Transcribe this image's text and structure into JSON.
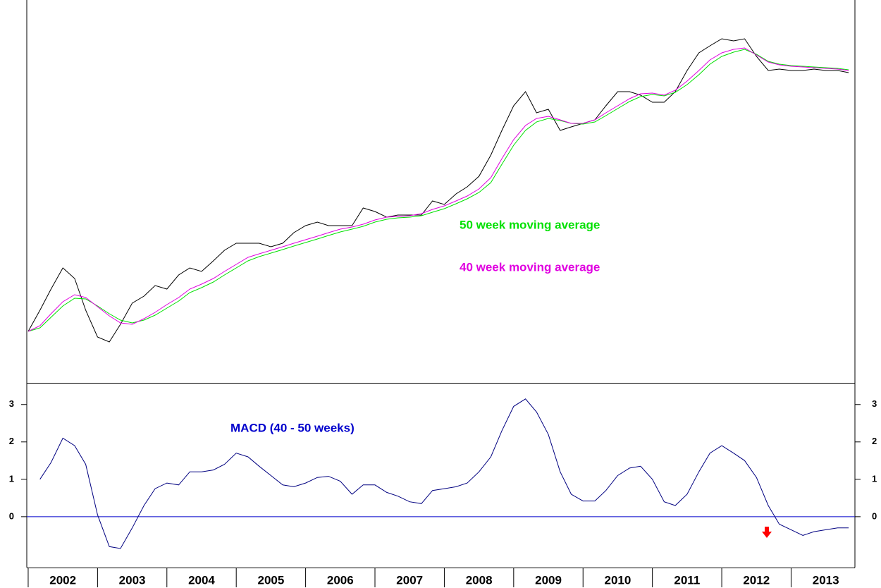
{
  "chart_data": [
    {
      "type": "line",
      "xlim": [
        2001.98,
        2013.92
      ],
      "ylim": [
        0,
        543
      ],
      "x": [
        2002,
        2002.17,
        2002.33,
        2002.5,
        2002.67,
        2002.83,
        2003,
        2003.17,
        2003.33,
        2003.5,
        2003.67,
        2003.83,
        2004,
        2004.17,
        2004.33,
        2004.5,
        2004.67,
        2004.83,
        2005,
        2005.17,
        2005.33,
        2005.5,
        2005.67,
        2005.83,
        2006,
        2006.17,
        2006.33,
        2006.5,
        2006.67,
        2006.83,
        2007,
        2007.17,
        2007.33,
        2007.5,
        2007.67,
        2007.83,
        2008,
        2008.17,
        2008.33,
        2008.5,
        2008.67,
        2008.83,
        2009,
        2009.17,
        2009.33,
        2009.5,
        2009.67,
        2009.83,
        2010,
        2010.17,
        2010.33,
        2010.5,
        2010.67,
        2010.83,
        2011,
        2011.17,
        2011.33,
        2011.5,
        2011.67,
        2011.83,
        2012,
        2012.17,
        2012.33,
        2012.5,
        2012.67,
        2012.83,
        2013,
        2013.17,
        2013.33,
        2013.5,
        2013.67,
        2013.83
      ],
      "series": [
        {
          "color": "#000000",
          "values": [
            73,
            103,
            133,
            163,
            148,
            103,
            65,
            58,
            83,
            113,
            123,
            138,
            133,
            153,
            163,
            158,
            173,
            188,
            198,
            198,
            198,
            193,
            198,
            213,
            223,
            228,
            223,
            223,
            223,
            248,
            243,
            235,
            238,
            238,
            238,
            258,
            253,
            268,
            278,
            293,
            323,
            358,
            393,
            413,
            383,
            388,
            358,
            363,
            368,
            373,
            393,
            413,
            413,
            408,
            398,
            398,
            413,
            443,
            468,
            478,
            488,
            485,
            488,
            463,
            443,
            445,
            443,
            443,
            445,
            443,
            443,
            440
          ]
        },
        {
          "color": "#00e000",
          "values": [
            73,
            78,
            93,
            109,
            120,
            119,
            109,
            98,
            89,
            85,
            89,
            96,
            106,
            116,
            128,
            135,
            143,
            153,
            163,
            173,
            179,
            184,
            189,
            194,
            199,
            204,
            209,
            214,
            218,
            222,
            228,
            232,
            234,
            235,
            237,
            242,
            247,
            254,
            261,
            270,
            284,
            310,
            337,
            358,
            370,
            375,
            372,
            368,
            367,
            370,
            379,
            389,
            399,
            406,
            409,
            407,
            412,
            423,
            437,
            452,
            463,
            469,
            473,
            466,
            456,
            452,
            450,
            449,
            448,
            447,
            446,
            444
          ]
        },
        {
          "color": "#e000e0",
          "values": [
            73,
            81,
            98,
            115,
            125,
            121,
            108,
            95,
            85,
            83,
            91,
            100,
            111,
            121,
            133,
            140,
            148,
            158,
            168,
            178,
            183,
            188,
            193,
            198,
            203,
            208,
            213,
            218,
            221,
            225,
            231,
            235,
            236,
            237,
            240,
            246,
            251,
            258,
            265,
            275,
            291,
            318,
            345,
            365,
            375,
            378,
            373,
            368,
            368,
            373,
            383,
            393,
            403,
            410,
            411,
            408,
            415,
            428,
            443,
            458,
            468,
            473,
            475,
            465,
            455,
            451,
            449,
            448,
            447,
            446,
            445,
            443
          ]
        }
      ],
      "annotations": [
        {
          "text": "50 week moving average",
          "color": "#00e000"
        },
        {
          "text": "40 week moving average",
          "color": "#e000e0"
        }
      ]
    },
    {
      "type": "line",
      "xlim": [
        2001.98,
        2013.92
      ],
      "ylim": [
        -1.36,
        3.58
      ],
      "yticks": [
        0,
        1,
        2,
        3
      ],
      "xticks": [
        2002,
        2003,
        2004,
        2005,
        2006,
        2007,
        2008,
        2009,
        2010,
        2011,
        2012,
        2013
      ],
      "reference_line": 0,
      "x": [
        2002,
        2002.17,
        2002.33,
        2002.5,
        2002.67,
        2002.83,
        2003,
        2003.17,
        2003.33,
        2003.5,
        2003.67,
        2003.83,
        2004,
        2004.17,
        2004.33,
        2004.5,
        2004.67,
        2004.83,
        2005,
        2005.17,
        2005.33,
        2005.5,
        2005.67,
        2005.83,
        2006,
        2006.17,
        2006.33,
        2006.5,
        2006.67,
        2006.83,
        2007,
        2007.17,
        2007.33,
        2007.5,
        2007.67,
        2007.83,
        2008,
        2008.17,
        2008.33,
        2008.5,
        2008.67,
        2008.83,
        2009,
        2009.17,
        2009.33,
        2009.5,
        2009.67,
        2009.83,
        2010,
        2010.17,
        2010.33,
        2010.5,
        2010.67,
        2010.83,
        2011,
        2011.17,
        2011.33,
        2011.5,
        2011.67,
        2011.83,
        2012,
        2012.17,
        2012.33,
        2012.5,
        2012.67,
        2012.83,
        2013,
        2013.17,
        2013.33,
        2013.5,
        2013.67,
        2013.83
      ],
      "series": [
        {
          "color": "#000080",
          "values": [
            null,
            1.0,
            1.45,
            2.1,
            1.9,
            1.4,
            0.05,
            -0.8,
            -0.85,
            -0.3,
            0.3,
            0.75,
            0.9,
            0.85,
            1.2,
            1.2,
            1.25,
            1.4,
            1.7,
            1.6,
            1.35,
            1.1,
            0.85,
            0.8,
            0.9,
            1.05,
            1.08,
            0.95,
            0.6,
            0.85,
            0.85,
            0.65,
            0.55,
            0.4,
            0.35,
            0.7,
            0.75,
            0.8,
            0.9,
            1.2,
            1.6,
            2.3,
            2.95,
            3.15,
            2.8,
            2.2,
            1.2,
            0.6,
            0.42,
            0.42,
            0.7,
            1.1,
            1.3,
            1.35,
            1.0,
            0.4,
            0.3,
            0.6,
            1.2,
            1.7,
            1.9,
            1.7,
            1.5,
            1.05,
            0.3,
            -0.2,
            -0.35,
            -0.5,
            -0.4,
            -0.35,
            -0.3,
            -0.3
          ]
        }
      ],
      "annotations": [
        {
          "text": "MACD (40 - 50 weeks)",
          "color": "#0000cc"
        }
      ]
    }
  ]
}
